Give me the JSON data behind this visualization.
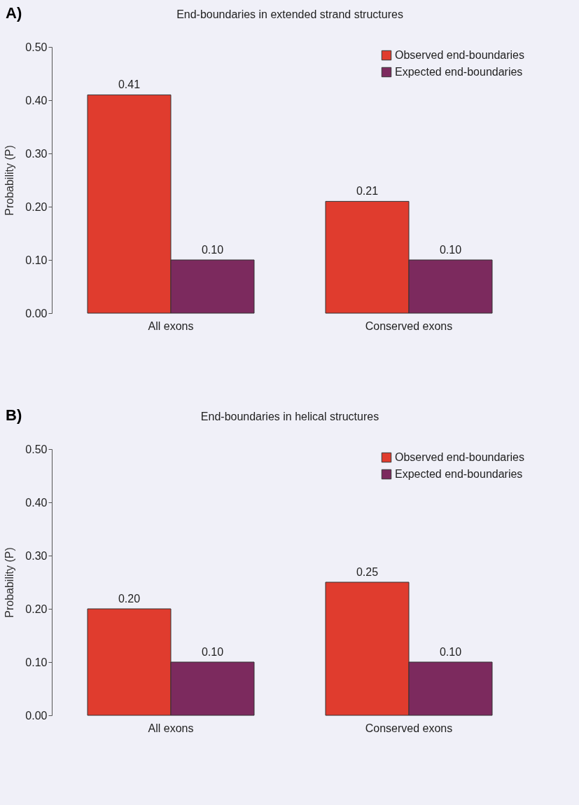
{
  "chart_data": [
    {
      "type": "bar",
      "title": "End-boundaries in extended strand structures",
      "ylabel": "Probability (P)",
      "annotations": [
        "A)"
      ],
      "categories": [
        "All exons",
        "Conserved exons"
      ],
      "series": [
        {
          "name": "Observed end-boundaries",
          "color": "#e03c2e",
          "values": [
            0.41,
            0.21
          ],
          "value_labels": [
            "0.41",
            "0.21"
          ]
        },
        {
          "name": "Expected end-boundaries",
          "color": "#7c2a5e",
          "values": [
            0.1,
            0.1
          ],
          "value_labels": [
            "0.10",
            "0.10"
          ]
        }
      ],
      "ylim": [
        0,
        0.5
      ],
      "yticks": [
        {
          "value": 0,
          "label": "0.00"
        },
        {
          "value": 0.1,
          "label": "0.10"
        },
        {
          "value": 0.2,
          "label": "0.20"
        },
        {
          "value": 0.3,
          "label": "0.30"
        },
        {
          "value": 0.4,
          "label": "0.40"
        },
        {
          "value": 0.5,
          "label": "0.50"
        }
      ],
      "grid": false,
      "legend": "top right"
    },
    {
      "type": "bar",
      "title": "End-boundaries in helical structures",
      "ylabel": "Probability (P)",
      "annotations": [
        "B)"
      ],
      "categories": [
        "All exons",
        "Conserved exons"
      ],
      "series": [
        {
          "name": "Observed end-boundaries",
          "color": "#e03c2e",
          "values": [
            0.2,
            0.25
          ],
          "value_labels": [
            "0.20",
            "0.25"
          ]
        },
        {
          "name": "Expected end-boundaries",
          "color": "#7c2a5e",
          "values": [
            0.1,
            0.1
          ],
          "value_labels": [
            "0.10",
            "0.10"
          ]
        }
      ],
      "ylim": [
        0,
        0.5
      ],
      "yticks": [
        {
          "value": 0,
          "label": "0.00"
        },
        {
          "value": 0.1,
          "label": "0.10"
        },
        {
          "value": 0.2,
          "label": "0.20"
        },
        {
          "value": 0.3,
          "label": "0.30"
        },
        {
          "value": 0.4,
          "label": "0.40"
        },
        {
          "value": 0.5,
          "label": "0.50"
        }
      ],
      "grid": false,
      "legend": "top right"
    }
  ]
}
